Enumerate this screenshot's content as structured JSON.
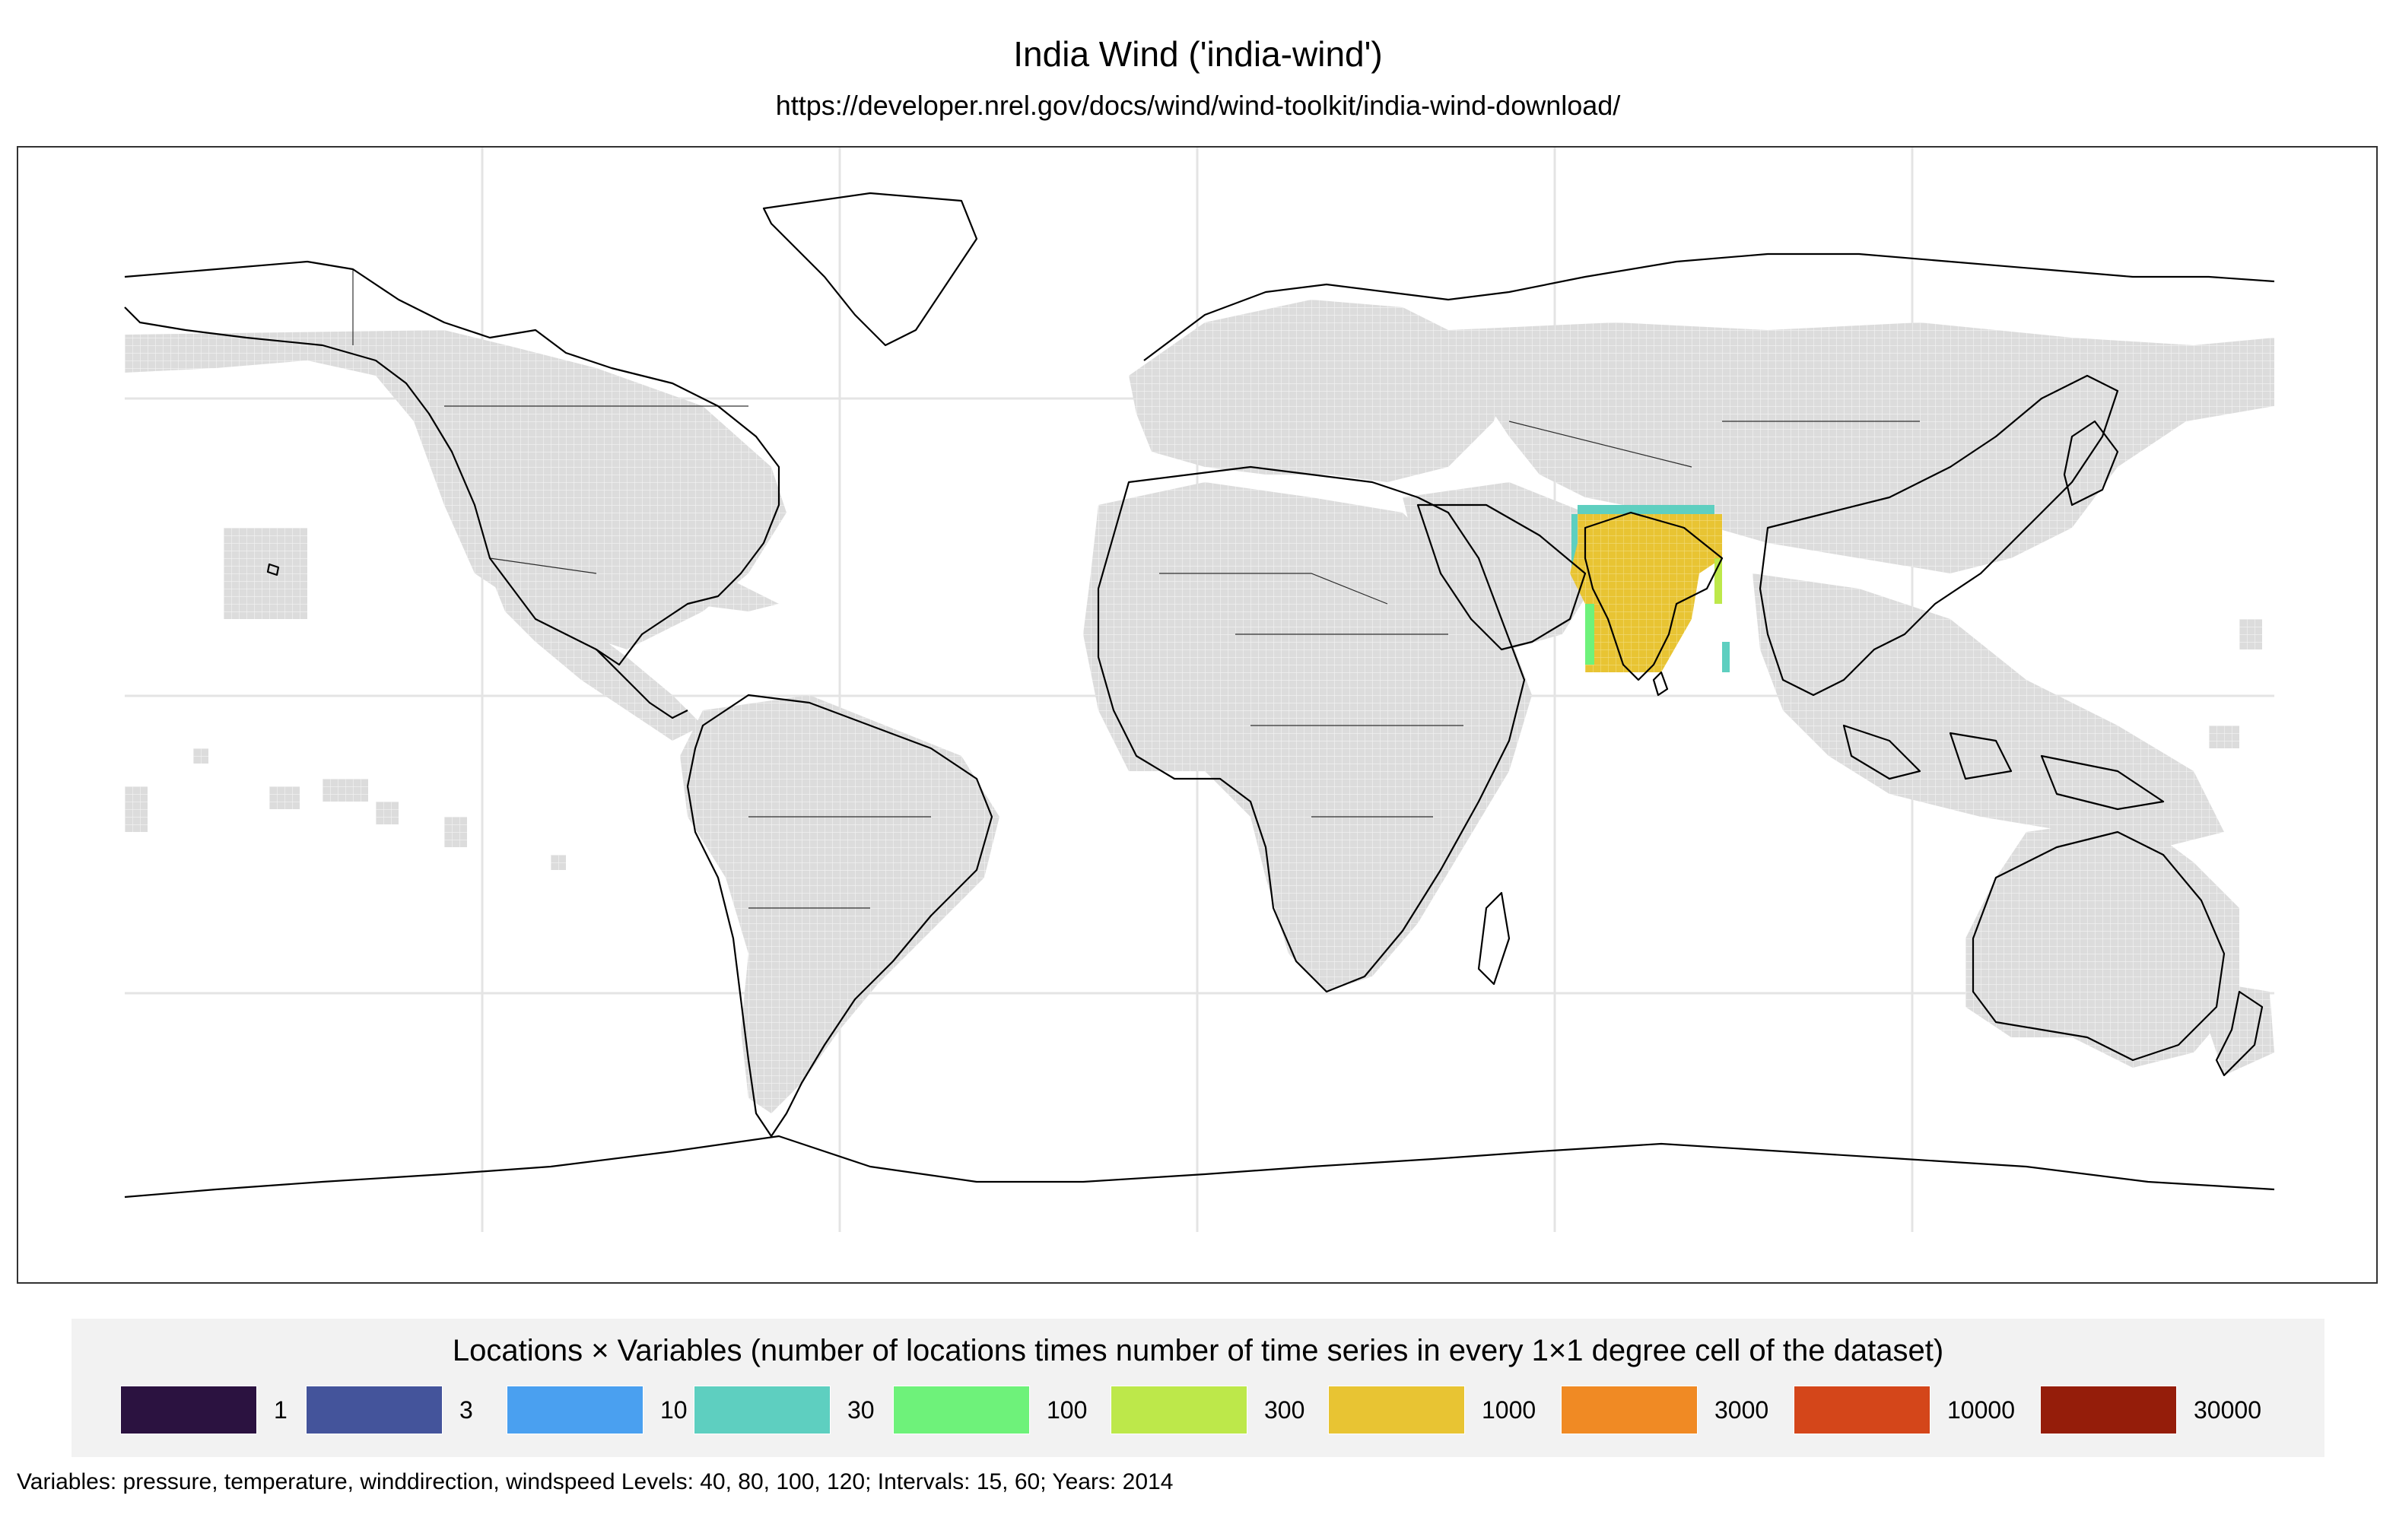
{
  "title": "India Wind ('india-wind')",
  "subtitle": "https://developer.nrel.gov/docs/wind/wind-toolkit/india-wind-download/",
  "map": {
    "coverage_color": "#dedede",
    "land_outline_color": "#000000",
    "graticule_color": "#e6e6e6",
    "highlight_region": "South Asia (India)",
    "highlight_color": "#e8c433",
    "highlight_edge_colors": [
      "#5ecfc0",
      "#6ef27a",
      "#bde84a"
    ]
  },
  "legend": {
    "title": "Locations × Variables (number of locations times number of time series in every 1×1 degree cell of the dataset)",
    "items": [
      {
        "label": "1",
        "color": "#2b1240"
      },
      {
        "label": "3",
        "color": "#44549b"
      },
      {
        "label": "10",
        "color": "#4aa0f0"
      },
      {
        "label": "30",
        "color": "#5ecfc0"
      },
      {
        "label": "100",
        "color": "#6ef27a"
      },
      {
        "label": "300",
        "color": "#bde84a"
      },
      {
        "label": "1000",
        "color": "#e8c433"
      },
      {
        "label": "3000",
        "color": "#f08a24"
      },
      {
        "label": "10000",
        "color": "#d4461a"
      },
      {
        "label": "30000",
        "color": "#951d0a"
      }
    ]
  },
  "caption": "Variables: pressure, temperature, winddirection, windspeed Levels: 40, 80, 100, 120; Intervals: 15, 60; Years: 2014"
}
